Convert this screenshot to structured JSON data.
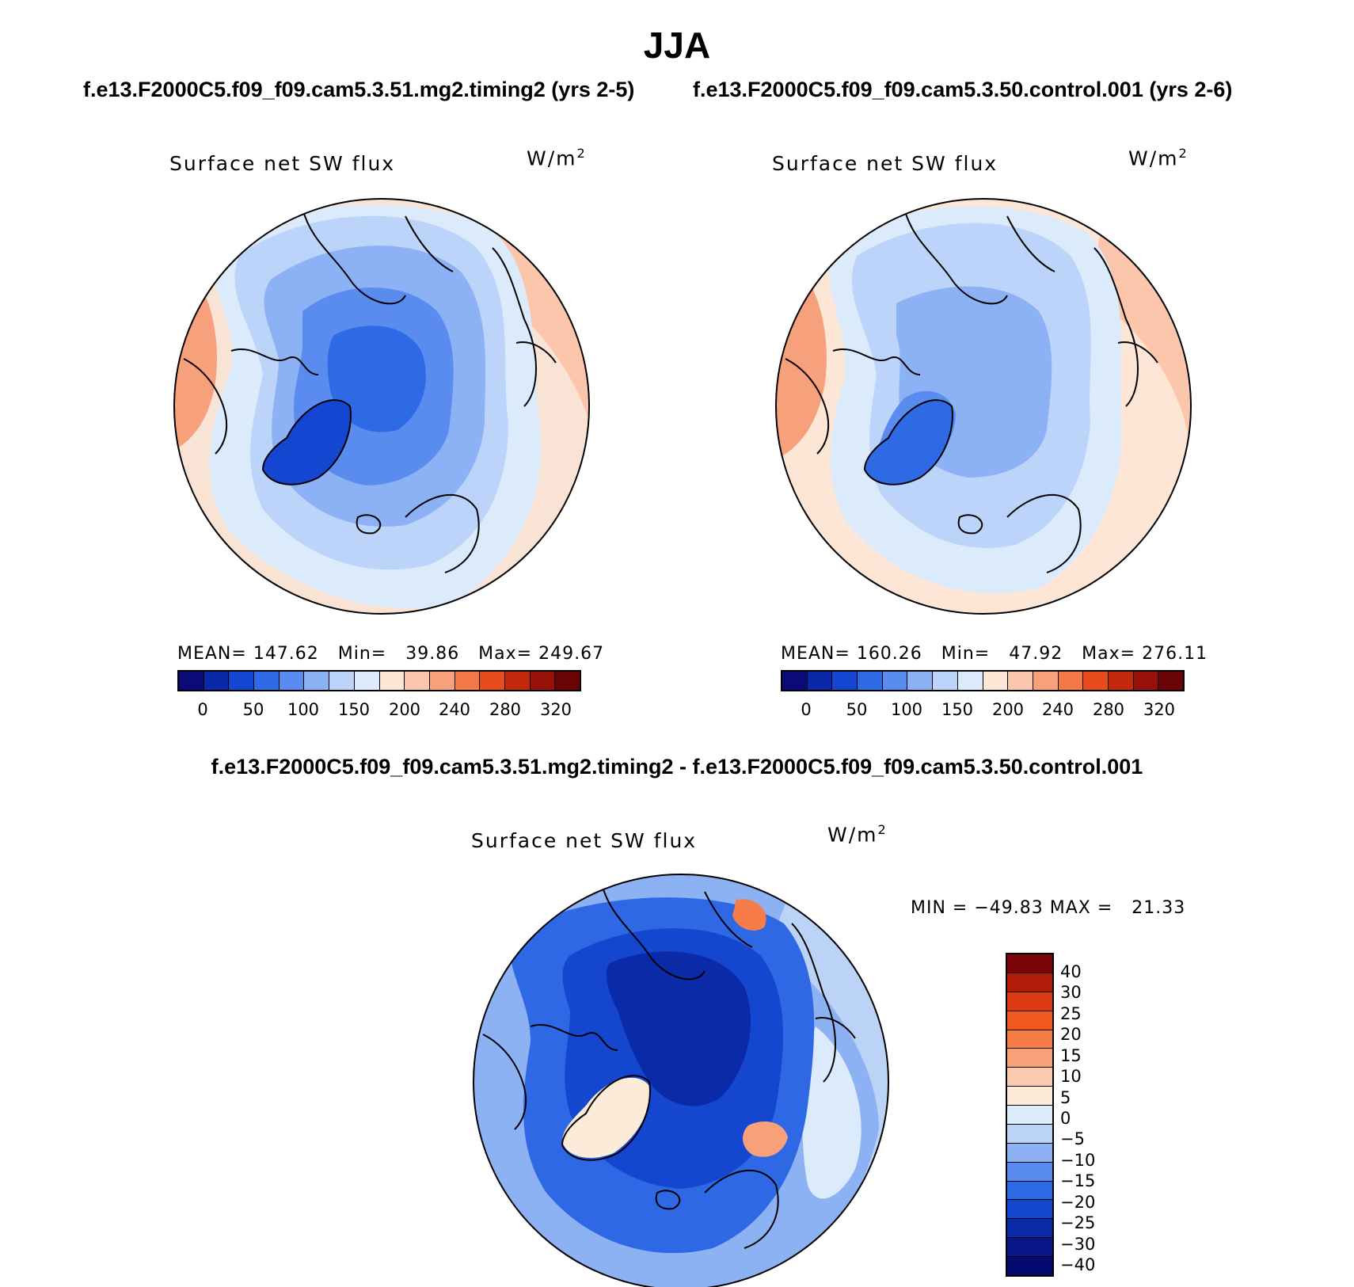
{
  "page": {
    "title": "JJA",
    "diff_title": "f.e13.F2000C5.f09_f09.cam5.3.51.mg2.timing2 - f.e13.F2000C5.f09_f09.cam5.3.50.control.001"
  },
  "panels": {
    "left": {
      "case_title": "f.e13.F2000C5.f09_f09.cam5.3.51.mg2.timing2 (yrs 2-5)",
      "variable": "Surface net SW flux",
      "units": "W/m",
      "units_exp": "2",
      "stats": "MEAN= 147.62   Min=   39.86   Max= 249.67"
    },
    "right": {
      "case_title": "f.e13.F2000C5.f09_f09.cam5.3.50.control.001 (yrs 2-6)",
      "variable": "Surface net SW flux",
      "units": "W/m",
      "units_exp": "2",
      "stats": "MEAN= 160.26   Min=   47.92   Max= 276.11"
    },
    "diff": {
      "variable": "Surface net SW flux",
      "units": "W/m",
      "units_exp": "2",
      "stats": "MIN = −49.83 MAX =   21.33"
    }
  },
  "colorbars": {
    "abs": {
      "colors": [
        "#0a0a78",
        "#0a28a8",
        "#1446d2",
        "#2f6ae6",
        "#5a8cf0",
        "#8cb1f5",
        "#bcd3fa",
        "#dcebfc",
        "#fde6d6",
        "#fbc6ab",
        "#f7a07c",
        "#f47848",
        "#e84c1c",
        "#c4280c",
        "#98100a",
        "#6a0406"
      ],
      "labels": [
        "0",
        "50",
        "100",
        "150",
        "200",
        "240",
        "280",
        "320"
      ]
    },
    "diff": {
      "colors": [
        "#7a0508",
        "#b41c0a",
        "#dc3a12",
        "#f0581e",
        "#f67c48",
        "#f8a078",
        "#facbb0",
        "#fdebda",
        "#dcebfb",
        "#bcd3f8",
        "#8db2f4",
        "#5a8cf0",
        "#2f68e4",
        "#1446d0",
        "#0a2aa8",
        "#08188a",
        "#050a6e"
      ],
      "labels": [
        "40",
        "30",
        "25",
        "20",
        "15",
        "10",
        "5",
        "0",
        "−5",
        "−10",
        "−15",
        "−20",
        "−25",
        "−30",
        "−40"
      ]
    }
  },
  "maps": {
    "left": {
      "background": "#f9e3d4",
      "field_colors": [
        "#fbc6ab",
        "#f7a07c",
        "#dcebfc",
        "#bcd3fa",
        "#8cb1f5",
        "#5a8cf0",
        "#2f6ae6",
        "#1446d2"
      ]
    },
    "right": {
      "background": "#fde6d6",
      "field_colors": [
        "#fbc6ab",
        "#f7a07c",
        "#f47848",
        "#dcebfc",
        "#bcd3fa",
        "#8cb1f5",
        "#5a8cf0",
        "#2f6ae6"
      ]
    },
    "diff": {
      "background": "#8db2f4",
      "field_colors": [
        "#bcd3f8",
        "#dcebfb",
        "#2f68e4",
        "#1446d0",
        "#0a2aa8",
        "#fdebda",
        "#f8a078",
        "#f67c48"
      ]
    }
  }
}
